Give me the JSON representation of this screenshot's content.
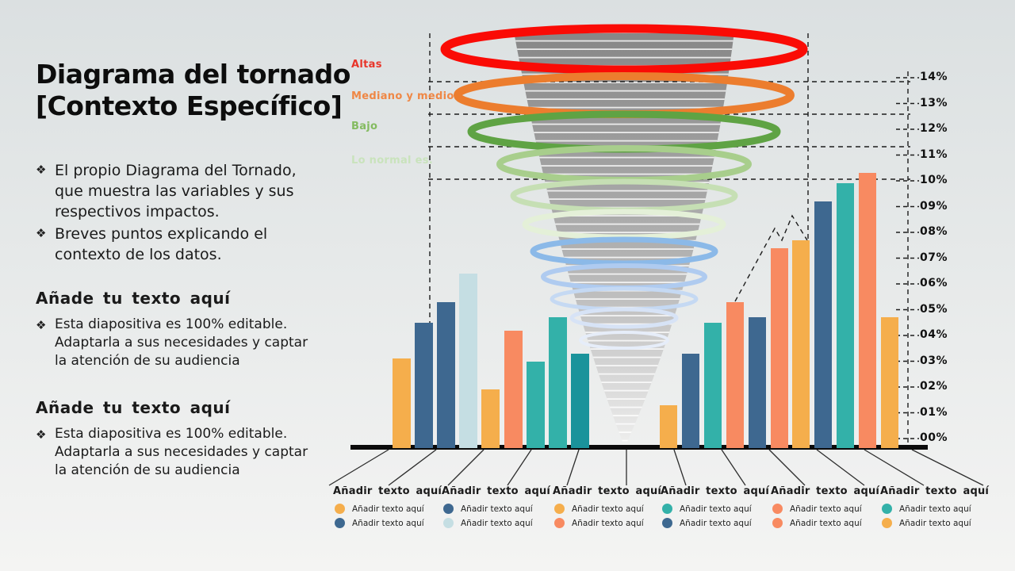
{
  "title": {
    "line1": "Diagrama del tornado",
    "line2": "[Contexto Específico]"
  },
  "intro_bullets": [
    {
      "marker": "❖",
      "text": "El propio Diagrama del Tornado, que muestra las variables y sus respectivos impactos."
    },
    {
      "marker": "❖",
      "text": "Breves puntos explicando el contexto de los datos."
    }
  ],
  "sections": [
    {
      "heading": "Añade tu texto aquí",
      "marker": "❖",
      "body": "Esta diapositiva es 100% editable. Adaptarla a sus necesidades y captar la atención de su audiencia"
    },
    {
      "heading": "Añade tu texto aquí",
      "marker": "❖",
      "body": "Esta diapositiva es 100% editable. Adaptarla a sus necesidades y captar la atención de su audiencia"
    }
  ],
  "funnel_labels": [
    {
      "label": "Altas",
      "color": "#e8352a"
    },
    {
      "label": "Mediano y medio",
      "color": "#ef8745"
    },
    {
      "label": "Bajo",
      "color": "#84bb60"
    },
    {
      "label": "Lo normal es.",
      "color": "#c9e3bc"
    }
  ],
  "legend_groups": [
    {
      "title": "Añadir texto aquí",
      "items": [
        {
          "color": "amber",
          "label": "Añadir texto aquí"
        },
        {
          "color": "blue",
          "label": "Añadir texto aquí"
        }
      ]
    },
    {
      "title": "Añadir texto aquí",
      "items": [
        {
          "color": "blue",
          "label": "Añadir texto aquí"
        },
        {
          "color": "lightblue",
          "label": "Añadir texto aquí"
        }
      ]
    },
    {
      "title": "Añadir texto aquí",
      "items": [
        {
          "color": "amber",
          "label": "Añadir texto aquí"
        },
        {
          "color": "salmon",
          "label": "Añadir texto aquí"
        }
      ]
    },
    {
      "title": "Añadir texto aquí",
      "items": [
        {
          "color": "teal",
          "label": "Añadir texto aquí"
        },
        {
          "color": "blue",
          "label": "Añadir texto aquí"
        }
      ]
    },
    {
      "title": "Añadir texto aquí",
      "items": [
        {
          "color": "salmon",
          "label": "Añadir texto aquí"
        },
        {
          "color": "salmon",
          "label": "Añadir texto aquí"
        }
      ]
    },
    {
      "title": "Añadir texto aquí",
      "items": [
        {
          "color": "teal",
          "label": "Añadir texto aquí"
        },
        {
          "color": "amber",
          "label": "Añadir texto aquí"
        }
      ]
    }
  ],
  "chart_data": {
    "type": "bar",
    "title": "Diagrama del tornado [Contexto Específico]",
    "ylabel": "%",
    "ylim": [
      0,
      14
    ],
    "grid": "dashed horizontal zone lines",
    "legend_position": "bottom",
    "y_ticks": [
      "14%",
      "13%",
      "12%",
      "11%",
      "10%",
      "09%",
      "08%",
      "07%",
      "06%",
      "05%",
      "04%",
      "03%",
      "02%",
      "01%",
      "00%"
    ],
    "palette": {
      "amber": "#f5ae4c",
      "blue": "#3e6890",
      "lightblue": "#c5dee3",
      "salmon": "#f88a61",
      "teal": "#33b1a9",
      "darkteal": "#1a939b"
    },
    "groups": [
      {
        "name": "left",
        "bars": [
          {
            "color": "amber",
            "value": 3.1
          },
          {
            "color": "blue",
            "value": 4.5
          },
          {
            "color": "blue",
            "value": 5.3
          },
          {
            "color": "lightblue",
            "value": 6.4
          },
          {
            "color": "amber",
            "value": 1.9
          },
          {
            "color": "salmon",
            "value": 4.2
          },
          {
            "color": "teal",
            "value": 3.0
          },
          {
            "color": "teal",
            "value": 4.7
          },
          {
            "color": "darkteal",
            "value": 3.3
          }
        ]
      },
      {
        "name": "right",
        "bars": [
          {
            "color": "amber",
            "value": 1.3
          },
          {
            "color": "blue",
            "value": 3.3
          },
          {
            "color": "teal",
            "value": 4.5
          },
          {
            "color": "salmon",
            "value": 5.3
          },
          {
            "color": "blue",
            "value": 4.7
          },
          {
            "color": "salmon",
            "value": 7.4
          },
          {
            "color": "amber",
            "value": 7.7
          },
          {
            "color": "blue",
            "value": 9.2
          },
          {
            "color": "teal",
            "value": 9.9
          },
          {
            "color": "salmon",
            "value": 10.3
          },
          {
            "color": "amber",
            "value": 4.7
          }
        ]
      }
    ],
    "funnel_levels": [
      {
        "color": "#fa0b05"
      },
      {
        "color": "#ec7d2e"
      },
      {
        "color": "#5fa344"
      },
      {
        "color": "#a8ce8c"
      },
      {
        "color": "#c6dfb4"
      },
      {
        "color": "#e4f0d8"
      },
      {
        "color": "#8bb9e8"
      },
      {
        "color": "#afcbf0"
      },
      {
        "color": "#c5d9f3"
      },
      {
        "color": "#d7e3f6"
      },
      {
        "color": "#e6edf9"
      }
    ]
  }
}
